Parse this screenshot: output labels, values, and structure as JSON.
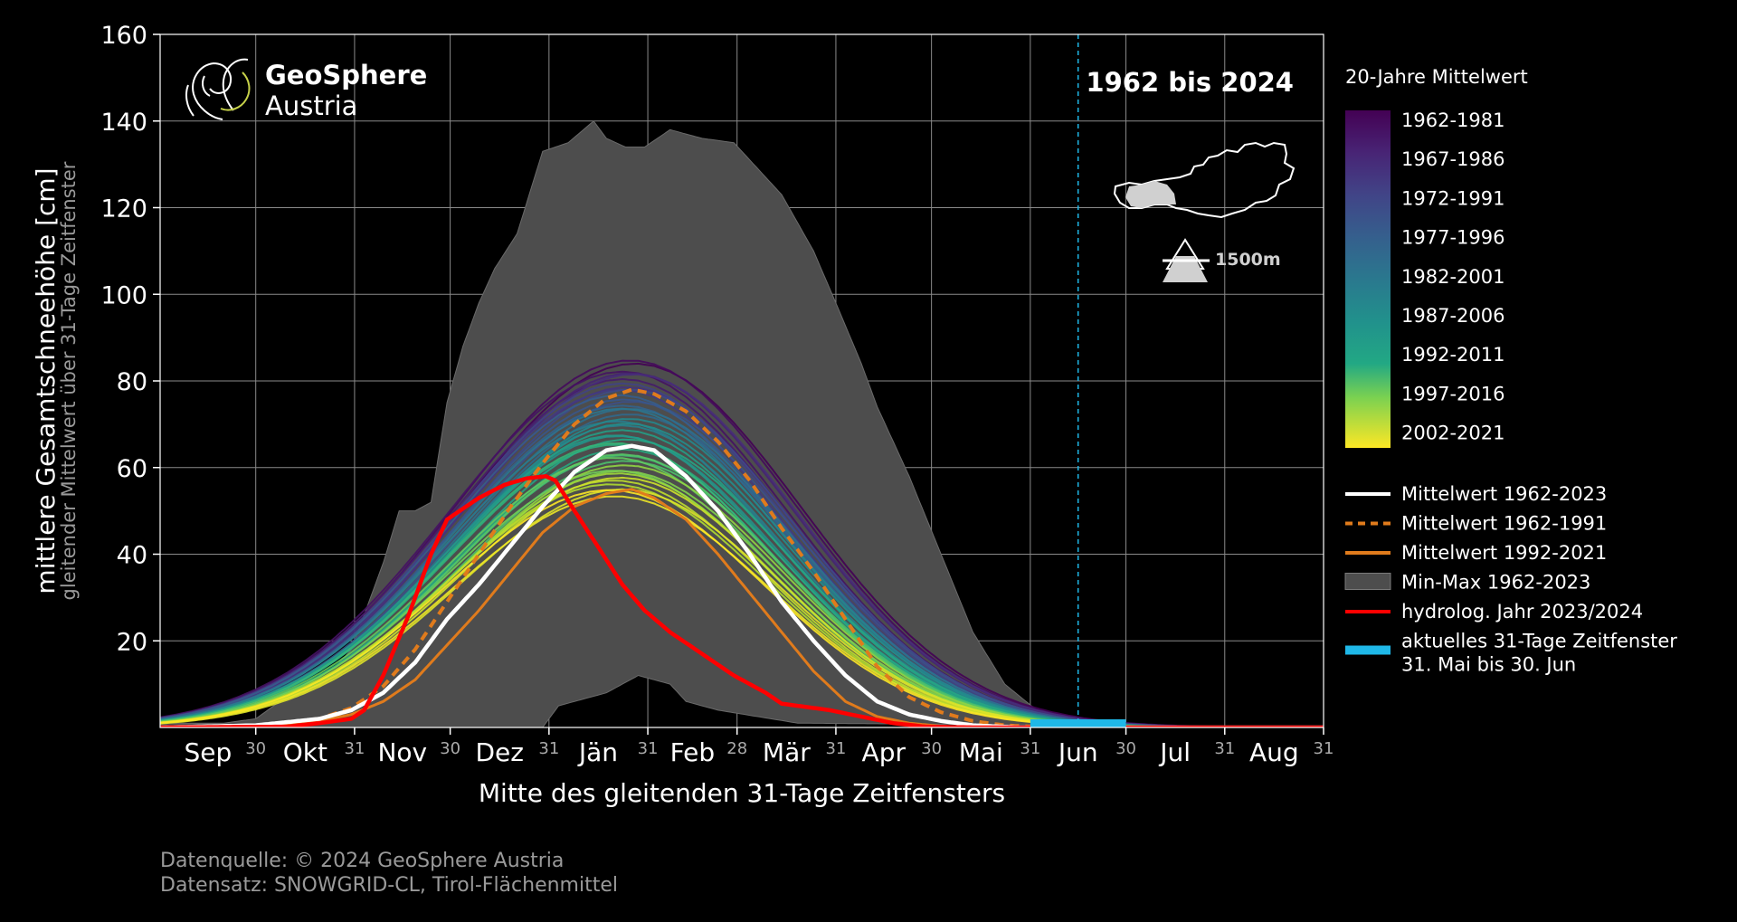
{
  "chart_data": {
    "type": "area",
    "title": "1962 bis 2024",
    "ylabel": "mittlere Gesamtschneehöhe [cm]",
    "ylabel2": "gleitender Mittelwert über 31-Tage Zeitfenster",
    "xlabel": "Mitte des gleitenden 31-Tage Zeitfensters",
    "ylim": [
      0,
      160
    ],
    "yticks": [
      "20",
      "40",
      "60",
      "80",
      "100",
      "120",
      "140",
      "160"
    ],
    "xlim_days": [
      0,
      365
    ],
    "months": [
      "Sep",
      "Okt",
      "Nov",
      "Dez",
      "Jän",
      "Feb",
      "Mär",
      "Apr",
      "Mai",
      "Jun",
      "Jul",
      "Aug"
    ],
    "month_end_labels": [
      "30",
      "31",
      "30",
      "31",
      "31",
      "28",
      "31",
      "30",
      "31",
      "30",
      "31",
      "31"
    ],
    "grid": true,
    "legend_position": "right",
    "logo": {
      "line1": "GeoSphere",
      "line2": "Austria"
    },
    "elevation_label": "1500m",
    "colorbar": {
      "title": "20-Jahre Mittelwert",
      "labels": [
        "1962-1981",
        "1967-1986",
        "1972-1991",
        "1977-1996",
        "1982-2001",
        "1987-2006",
        "1992-2011",
        "1997-2016",
        "2002-2021"
      ],
      "colors": [
        "#440154",
        "#472d7b",
        "#3b528b",
        "#2c728e",
        "#21918c",
        "#28ae80",
        "#5ec962",
        "#addc30",
        "#fde725"
      ]
    },
    "legend": [
      {
        "label": "Mittelwert 1962-2023",
        "color": "#ffffff",
        "style": "solid"
      },
      {
        "label": "Mittelwert 1962-1991",
        "color": "#e07b1c",
        "style": "dashed"
      },
      {
        "label": "Mittelwert 1992-2021",
        "color": "#e07b1c",
        "style": "solid"
      },
      {
        "label": "Min-Max 1962-2023",
        "color": "#4d4d4d",
        "style": "patch"
      },
      {
        "label": "hydrolog. Jahr 2023/2024",
        "color": "#ff0000",
        "style": "solid"
      },
      {
        "label": "aktuelles 31-Tage Zeitfenster",
        "label2": "31. Mai bis 30. Jun",
        "color": "#1fb8e8",
        "style": "thick"
      }
    ],
    "window_day_range": [
      273,
      303
    ],
    "current_day_marker": 288,
    "series": {
      "min_max_upper": [
        [
          0,
          1
        ],
        [
          20,
          1
        ],
        [
          30,
          2
        ],
        [
          45,
          10
        ],
        [
          55,
          14
        ],
        [
          60,
          18
        ],
        [
          70,
          38
        ],
        [
          75,
          50
        ],
        [
          80,
          50
        ],
        [
          85,
          52
        ],
        [
          90,
          75
        ],
        [
          95,
          88
        ],
        [
          100,
          98
        ],
        [
          105,
          106
        ],
        [
          112,
          114
        ],
        [
          120,
          133
        ],
        [
          128,
          135
        ],
        [
          136,
          140
        ],
        [
          140,
          136
        ],
        [
          146,
          134
        ],
        [
          152,
          134
        ],
        [
          160,
          138
        ],
        [
          170,
          136
        ],
        [
          180,
          135
        ],
        [
          190,
          127
        ],
        [
          195,
          123
        ],
        [
          205,
          110
        ],
        [
          212,
          98
        ],
        [
          220,
          84
        ],
        [
          225,
          74
        ],
        [
          235,
          58
        ],
        [
          245,
          40
        ],
        [
          255,
          22
        ],
        [
          265,
          10
        ],
        [
          275,
          4
        ],
        [
          285,
          2
        ],
        [
          295,
          1
        ],
        [
          330,
          0
        ],
        [
          365,
          0
        ]
      ],
      "min_max_lower": [
        [
          0,
          0
        ],
        [
          120,
          0
        ],
        [
          125,
          5
        ],
        [
          135,
          7
        ],
        [
          140,
          8
        ],
        [
          150,
          12
        ],
        [
          160,
          10
        ],
        [
          165,
          6
        ],
        [
          175,
          4
        ],
        [
          200,
          1
        ],
        [
          365,
          0
        ]
      ],
      "mean_1962_2023": [
        [
          0,
          0
        ],
        [
          30,
          0.5
        ],
        [
          50,
          2
        ],
        [
          60,
          4
        ],
        [
          70,
          8
        ],
        [
          80,
          15
        ],
        [
          90,
          25
        ],
        [
          100,
          33
        ],
        [
          110,
          42
        ],
        [
          120,
          51
        ],
        [
          130,
          59
        ],
        [
          140,
          64
        ],
        [
          148,
          65
        ],
        [
          155,
          64
        ],
        [
          165,
          58
        ],
        [
          175,
          50
        ],
        [
          185,
          40
        ],
        [
          195,
          29
        ],
        [
          205,
          20
        ],
        [
          215,
          12
        ],
        [
          225,
          6
        ],
        [
          235,
          3
        ],
        [
          245,
          1.5
        ],
        [
          255,
          0.5
        ],
        [
          270,
          0
        ],
        [
          365,
          0
        ]
      ],
      "mean_1962_1991": [
        [
          0,
          0
        ],
        [
          30,
          0.5
        ],
        [
          50,
          2
        ],
        [
          60,
          4.5
        ],
        [
          70,
          9.5
        ],
        [
          80,
          18
        ],
        [
          90,
          29
        ],
        [
          100,
          40
        ],
        [
          110,
          51
        ],
        [
          120,
          61
        ],
        [
          130,
          70
        ],
        [
          140,
          76
        ],
        [
          148,
          78
        ],
        [
          155,
          77
        ],
        [
          165,
          73
        ],
        [
          175,
          66
        ],
        [
          185,
          57
        ],
        [
          195,
          46
        ],
        [
          205,
          36
        ],
        [
          215,
          25
        ],
        [
          225,
          14
        ],
        [
          235,
          7
        ],
        [
          245,
          3.5
        ],
        [
          255,
          1.5
        ],
        [
          265,
          0.5
        ],
        [
          280,
          0
        ],
        [
          365,
          0
        ]
      ],
      "mean_1992_2021": [
        [
          0,
          0
        ],
        [
          30,
          0.3
        ],
        [
          50,
          1.5
        ],
        [
          60,
          3
        ],
        [
          70,
          6
        ],
        [
          80,
          11
        ],
        [
          90,
          19
        ],
        [
          100,
          27
        ],
        [
          110,
          36
        ],
        [
          120,
          45
        ],
        [
          130,
          51
        ],
        [
          140,
          54
        ],
        [
          148,
          55
        ],
        [
          155,
          53
        ],
        [
          165,
          48
        ],
        [
          175,
          40
        ],
        [
          185,
          31
        ],
        [
          195,
          22
        ],
        [
          205,
          13
        ],
        [
          215,
          6
        ],
        [
          225,
          2.5
        ],
        [
          235,
          1
        ],
        [
          245,
          0.3
        ],
        [
          255,
          0
        ],
        [
          365,
          0
        ]
      ],
      "hydrolog_2023_2024": [
        [
          0,
          0
        ],
        [
          40,
          0.2
        ],
        [
          50,
          1
        ],
        [
          60,
          2
        ],
        [
          64,
          4
        ],
        [
          70,
          12
        ],
        [
          78,
          26
        ],
        [
          85,
          40
        ],
        [
          90,
          48
        ],
        [
          94,
          50
        ],
        [
          100,
          53
        ],
        [
          108,
          56
        ],
        [
          115,
          57.5
        ],
        [
          121,
          58
        ],
        [
          124,
          57
        ],
        [
          130,
          50
        ],
        [
          138,
          41
        ],
        [
          145,
          33
        ],
        [
          152,
          27
        ],
        [
          160,
          22
        ],
        [
          170,
          17
        ],
        [
          180,
          12
        ],
        [
          190,
          8
        ],
        [
          195,
          5.5
        ],
        [
          200,
          5
        ],
        [
          210,
          4
        ],
        [
          220,
          2.5
        ],
        [
          230,
          1
        ],
        [
          240,
          0.2
        ],
        [
          255,
          0
        ],
        [
          365,
          0
        ]
      ]
    }
  },
  "footer": {
    "source": "Datenquelle: © 2024 GeoSphere Austria",
    "dataset": "Datensatz: SNOWGRID-CL, Tirol-Flächenmittel"
  }
}
